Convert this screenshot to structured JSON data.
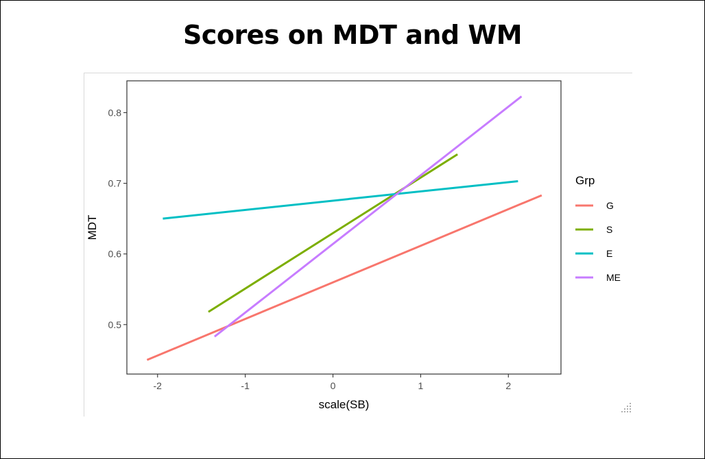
{
  "slide": {
    "title": "Scores on MDT and WM"
  },
  "chart_data": {
    "type": "line",
    "title": "",
    "xlabel": "scale(SB)",
    "ylabel": "MDT",
    "xlim": [
      -2.35,
      2.6
    ],
    "ylim": [
      0.43,
      0.845
    ],
    "x_ticks": [
      -2,
      -1,
      0,
      1,
      2
    ],
    "x_tick_labels": [
      "-2",
      "-1",
      "0",
      "1",
      "2"
    ],
    "y_ticks": [
      0.5,
      0.6,
      0.7,
      0.8
    ],
    "y_tick_labels": [
      "0.5",
      "0.6",
      "0.7",
      "0.8"
    ],
    "grid": false,
    "legend": {
      "title": "Grp",
      "placement": "right"
    },
    "series": [
      {
        "name": "G",
        "color": "#F8766D",
        "x": [
          -2.12,
          2.38
        ],
        "y": [
          0.45,
          0.683
        ]
      },
      {
        "name": "S",
        "color": "#7CAE00",
        "x": [
          -1.42,
          1.42
        ],
        "y": [
          0.518,
          0.741
        ]
      },
      {
        "name": "E",
        "color": "#00BFC4",
        "x": [
          -1.94,
          2.11
        ],
        "y": [
          0.65,
          0.703
        ]
      },
      {
        "name": "ME",
        "color": "#C77CFF",
        "x": [
          -1.35,
          2.15
        ],
        "y": [
          0.483,
          0.823
        ]
      }
    ]
  }
}
